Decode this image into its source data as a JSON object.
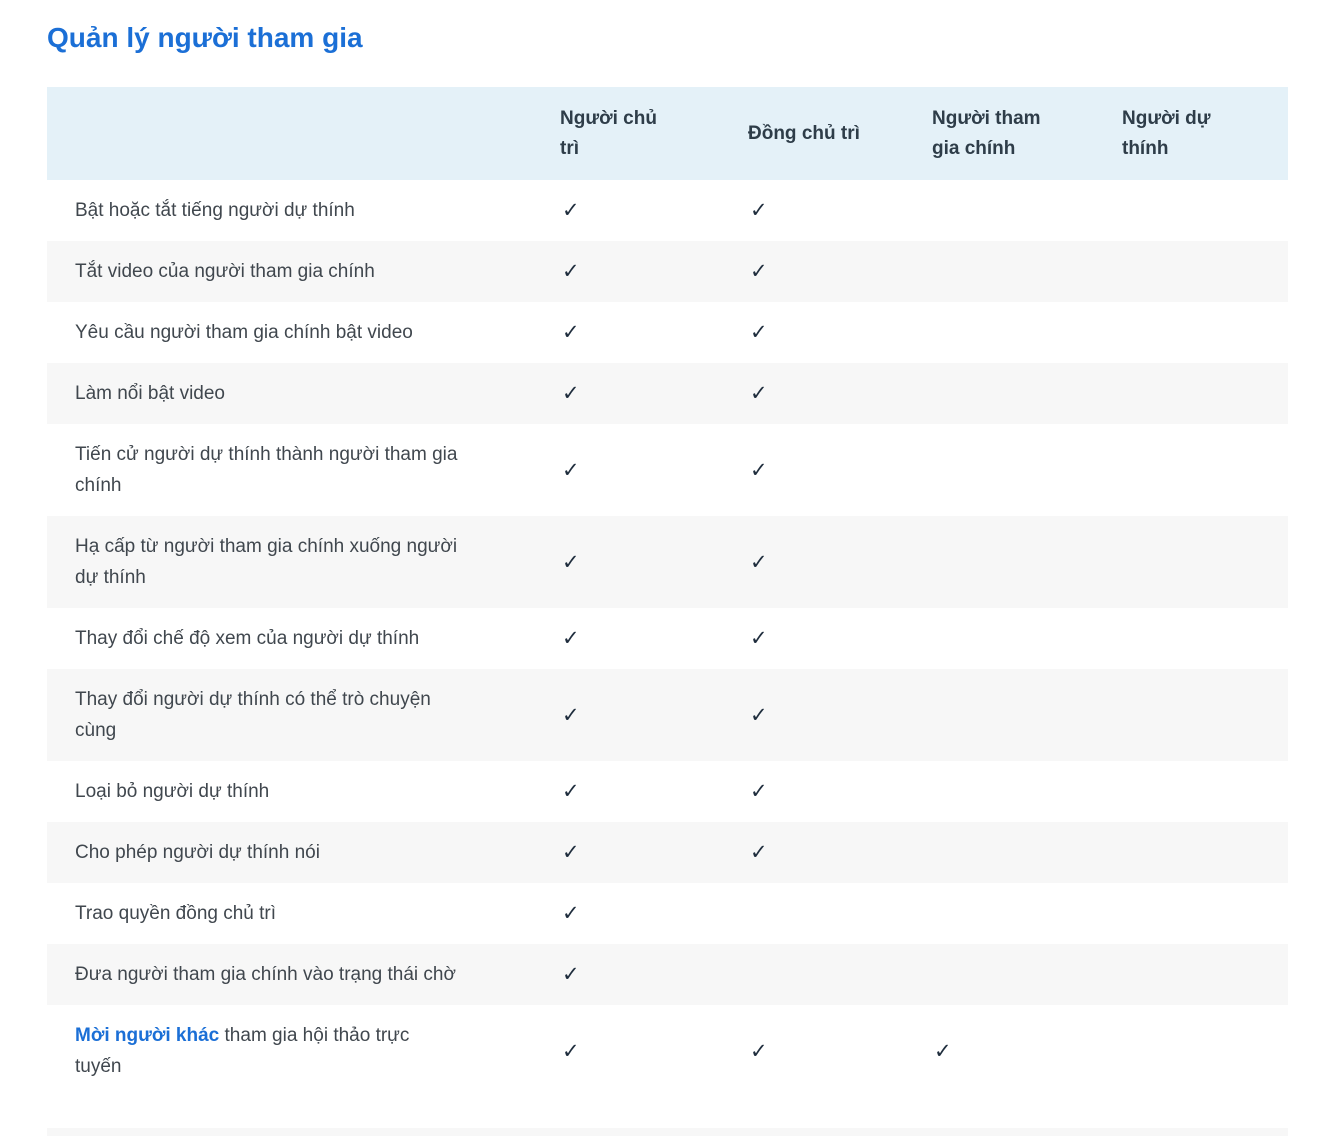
{
  "title": "Quản lý người tham gia",
  "colors": {
    "accent_blue": "#1b6fd6",
    "header_bg": "#e4f1f8",
    "alt_row_bg": "#f7f7f7",
    "body_text": "#40474e",
    "header_text": "#2e3d49"
  },
  "table": {
    "check_icon": "✓",
    "columns": [
      "Người chủ\ntrì",
      "Đồng chủ trì",
      "Người tham\ngia chính",
      "Người dự\nthính"
    ],
    "column_keys": [
      "host",
      "co-host",
      "main-participant",
      "attendee"
    ],
    "rows": [
      {
        "feature": "Bật hoặc tắt tiếng người dự thính",
        "checks": [
          true,
          true,
          false,
          false
        ]
      },
      {
        "feature": "Tắt video của người tham gia chính",
        "checks": [
          true,
          true,
          false,
          false
        ]
      },
      {
        "feature": "Yêu cầu người tham gia chính bật video",
        "checks": [
          true,
          true,
          false,
          false
        ]
      },
      {
        "feature": "Làm nổi bật video",
        "checks": [
          true,
          true,
          false,
          false
        ]
      },
      {
        "feature": "Tiến cử người dự thính thành người tham gia\nchính",
        "checks": [
          true,
          true,
          false,
          false
        ]
      },
      {
        "feature": "Hạ cấp từ người tham gia chính xuống người\ndự thính",
        "checks": [
          true,
          true,
          false,
          false
        ]
      },
      {
        "feature": "Thay đổi chế độ xem của người dự thính",
        "checks": [
          true,
          true,
          false,
          false
        ]
      },
      {
        "feature": "Thay đổi người dự thính có thể trò chuyện\ncùng",
        "checks": [
          true,
          true,
          false,
          false
        ]
      },
      {
        "feature": "Loại bỏ người dự thính",
        "checks": [
          true,
          true,
          false,
          false
        ]
      },
      {
        "feature": "Cho phép người dự thính nói",
        "checks": [
          true,
          true,
          false,
          false
        ]
      },
      {
        "feature": "Trao quyền đồng chủ trì",
        "checks": [
          true,
          false,
          false,
          false
        ]
      },
      {
        "feature": "Đưa người tham gia chính vào trạng thái chờ",
        "checks": [
          true,
          false,
          false,
          false
        ]
      },
      {
        "link_text": "Mời người khác",
        "feature": " tham gia hội thảo trực\ntuyến",
        "checks": [
          true,
          true,
          true,
          false
        ],
        "last": true
      }
    ]
  }
}
